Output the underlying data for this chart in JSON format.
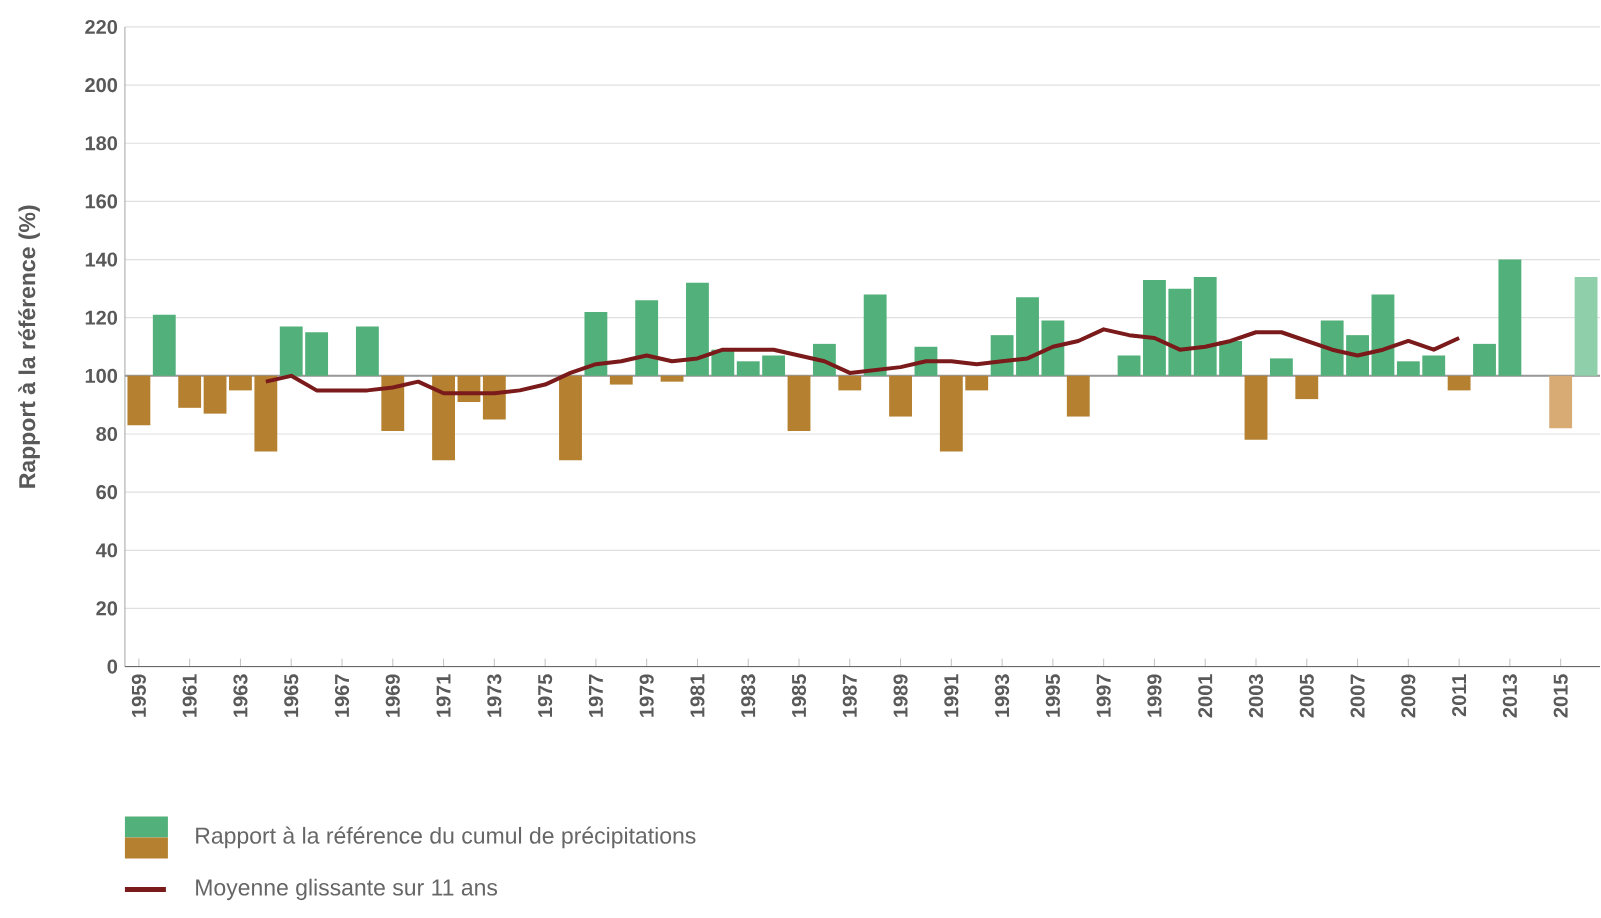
{
  "chart_data": {
    "type": "bar",
    "ylabel": "Rapport à la référence (%)",
    "categories": [
      "1959",
      null,
      "1961",
      null,
      "1963",
      null,
      "1965",
      null,
      "1967",
      null,
      "1969",
      null,
      "1971",
      null,
      "1973",
      null,
      "1975",
      null,
      "1977",
      null,
      "1979",
      null,
      "1981",
      null,
      "1983",
      null,
      "1985",
      null,
      "1987",
      null,
      "1989",
      null,
      "1991",
      null,
      "1993",
      null,
      "1995",
      null,
      "1997",
      null,
      "1999",
      null,
      "2001",
      null,
      "2003",
      null,
      "2005",
      null,
      "2007",
      null,
      "2009",
      null,
      "2011",
      null,
      "2013",
      null,
      "2015",
      null
    ],
    "series": [
      {
        "name": "Rapport à la référence du cumul de précipitations",
        "values": [
          -17,
          21,
          -11,
          -13,
          -5,
          -26,
          17,
          15,
          null,
          17,
          -19,
          null,
          -29,
          -9,
          -15,
          null,
          null,
          -29,
          22,
          -3,
          26,
          -2,
          32,
          9,
          5,
          7,
          -19,
          11,
          -5,
          28,
          -14,
          10,
          -26,
          -5,
          14,
          27,
          19,
          -14,
          null,
          7,
          33,
          30,
          34,
          12,
          -22,
          6,
          -8,
          19,
          14,
          28,
          5,
          7,
          -5,
          11,
          40,
          null,
          -18,
          34
        ],
        "base": [
          100,
          100,
          100,
          100,
          100,
          100,
          100,
          100,
          null,
          100,
          100,
          null,
          100,
          100,
          100,
          null,
          null,
          100,
          100,
          100,
          100,
          100,
          100,
          100,
          100,
          100,
          100,
          100,
          100,
          100,
          100,
          100,
          100,
          100,
          100,
          100,
          100,
          100,
          null,
          100,
          100,
          100,
          100,
          100,
          100,
          100,
          100,
          100,
          100,
          100,
          100,
          100,
          100,
          100,
          100,
          null,
          100,
          100
        ],
        "colors": [
          "#b5802f",
          "#52b07a",
          "#b5802f",
          "#b5802f",
          "#b5802f",
          "#b5802f",
          "#52b07a",
          "#52b07a",
          "#52b07a",
          "#52b07a",
          "#b5802f",
          "#52b07a",
          "#b5802f",
          "#b5802f",
          "#b5802f",
          "#52b07a",
          "#52b07a",
          "#b5802f",
          "#52b07a",
          "#b5802f",
          "#52b07a",
          "#b5802f",
          "#52b07a",
          "#52b07a",
          "#52b07a",
          "#52b07a",
          "#b5802f",
          "#52b07a",
          "#b5802f",
          "#52b07a",
          "#b5802f",
          "#52b07a",
          "#b5802f",
          "#b5802f",
          "#52b07a",
          "#52b07a",
          "#52b07a",
          "#b5802f",
          "#52b07a",
          "#52b07a",
          "#52b07a",
          "#52b07a",
          "#52b07a",
          "#52b07a",
          "#b5802f",
          "#52b07a",
          "#b5802f",
          "#52b07a",
          "#52b07a",
          "#52b07a",
          "#52b07a",
          "#52b07a",
          "#b5802f",
          "#52b07a",
          "#52b07a",
          "#52b07a",
          "#d8ab74",
          "#8fd0aa"
        ]
      },
      {
        "name": "Moyenne glissante sur 11 ans",
        "type": "line",
        "color": "#7a1a1a",
        "values": [
          null,
          null,
          null,
          null,
          null,
          98,
          100,
          95,
          95,
          95,
          96,
          98,
          94,
          94,
          94,
          95,
          97,
          101,
          104,
          105,
          107,
          105,
          106,
          109,
          109,
          109,
          107,
          105,
          101,
          102,
          103,
          105,
          105,
          104,
          105,
          106,
          110,
          112,
          116,
          114,
          113,
          109,
          110,
          112,
          115,
          115,
          112,
          109,
          107,
          109,
          112,
          109,
          113,
          null,
          null,
          null,
          null,
          null
        ]
      }
    ],
    "ylim": [
      0,
      220
    ],
    "yticks": [
      0,
      20,
      40,
      60,
      80,
      100,
      120,
      140,
      160,
      180,
      200,
      220
    ],
    "ref_lines": [
      {
        "axis": "y",
        "value": 100,
        "color": "#999999"
      }
    ],
    "grid": "y",
    "legend": "bottom",
    "line_style": "solid",
    "marker": "none"
  }
}
